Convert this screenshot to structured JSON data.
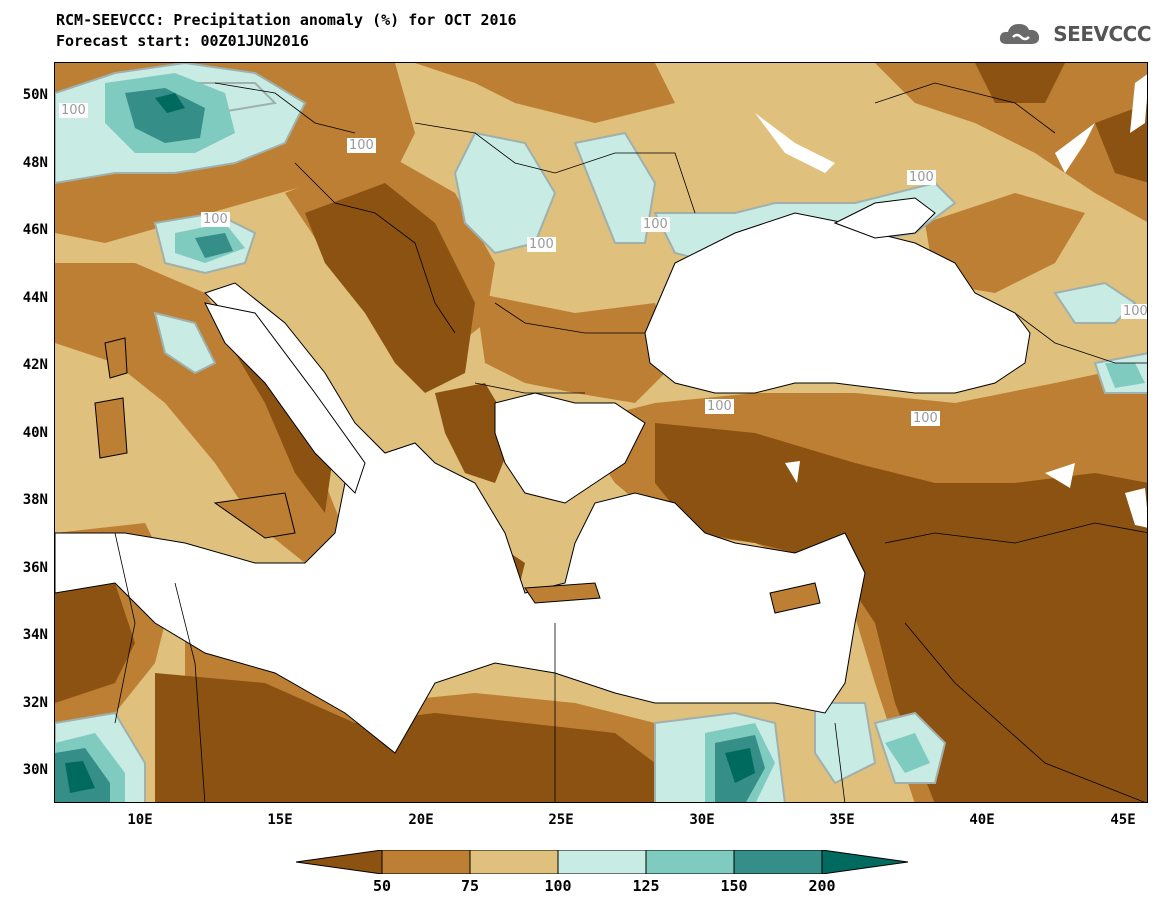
{
  "title": {
    "line1": "RCM-SEEVCCC: Precipitation anomaly (%) for OCT 2016",
    "line2": "Forecast start: 00Z01JUN2016"
  },
  "brand": {
    "name": "SEEVCCC",
    "icon": "cloud-logo-icon"
  },
  "map": {
    "lat_labels": [
      "50N",
      "48N",
      "46N",
      "44N",
      "42N",
      "40N",
      "38N",
      "36N",
      "34N",
      "32N",
      "30N"
    ],
    "lon_labels": [
      "10E",
      "15E",
      "20E",
      "25E",
      "30E",
      "35E",
      "40E",
      "45E"
    ],
    "contour_value": "100",
    "colors": {
      "below_50": "#8c5212",
      "50_75": "#bd7f33",
      "75_100": "#dfc07c",
      "100_125": "#c8ebe4",
      "125_150": "#7fcbbf",
      "150_200": "#358e87",
      "above_200": "#006a5e",
      "sea": "#ffffff"
    }
  },
  "colorbar": {
    "labels": [
      "50",
      "75",
      "100",
      "125",
      "150",
      "200"
    ],
    "colors": [
      "#8c5212",
      "#bd7f33",
      "#dfc07c",
      "#c8ebe4",
      "#7fcbbf",
      "#358e87",
      "#006a5e"
    ]
  }
}
